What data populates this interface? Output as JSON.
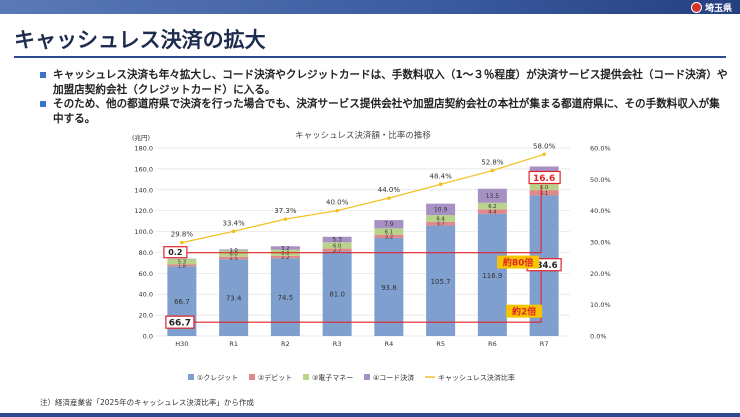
{
  "header": {
    "logo_text": "埼玉県"
  },
  "slide_title": "キャッシュレス決済の拡大",
  "bullets": [
    "キャッシュレス決済も年々拡大し、コード決済やクレジットカードは、手数料収入（1～３％程度）が決済サービス提供会社（コード決済）や加盟店契約会社（クレジットカード）に入る。",
    "そのため、他の都道府県で決済を行った場合でも、決済サービス提供会社や加盟店契約会社の本社が集まる都道府県に、その手数料収入が集中する。"
  ],
  "source_note": "注）経済産業省「2025年のキャッシュレス決済比率」から作成",
  "chart_data": {
    "type": "bar",
    "title": "キャッシュレス決済額・比率の推移",
    "y_unit_label": "(兆円)",
    "categories": [
      "H30",
      "R1",
      "R2",
      "R3",
      "R4",
      "R5",
      "R6",
      "R7"
    ],
    "ylim": [
      0,
      180
    ],
    "y_ticks": [
      "0.0",
      "20.0",
      "40.0",
      "60.0",
      "80.0",
      "100.0",
      "120.0",
      "140.0",
      "160.0",
      "180.0"
    ],
    "y2lim": [
      0,
      60
    ],
    "y2_ticks": [
      "0.0%",
      "10.0%",
      "20.0%",
      "30.0%",
      "40.0%",
      "50.0%",
      "60.0%"
    ],
    "series": [
      {
        "name": "①クレジット",
        "color": "#7f9fcf",
        "values": [
          66.7,
          73.4,
          74.5,
          81.0,
          93.8,
          105.7,
          116.9,
          134.6
        ]
      },
      {
        "name": "②デビット",
        "color": "#e0898c",
        "values": [
          1.8,
          2.5,
          2.2,
          2.7,
          3.2,
          3.7,
          4.4,
          5.1
        ]
      },
      {
        "name": "③電子マネー",
        "color": "#b9d38b",
        "values": [
          5.3,
          6.0,
          6.0,
          6.0,
          6.1,
          6.4,
          6.2,
          6.0
        ]
      },
      {
        "name": "④コード決済",
        "color": "#a791c4",
        "values": [
          0.2,
          1.0,
          3.2,
          5.3,
          7.9,
          10.9,
          13.5,
          16.6
        ]
      }
    ],
    "line_series": {
      "name": "キャッシュレス決済比率",
      "color": "#f2c01b",
      "values": [
        29.8,
        33.4,
        37.3,
        40.0,
        44.0,
        48.4,
        52.8,
        58.0
      ],
      "labels": [
        "29.8%",
        "33.4%",
        "37.3%",
        "40.0%",
        "44.0%",
        "48.4%",
        "52.8%",
        "58.0%"
      ]
    },
    "bar_labels": {
      "credit": [
        "66.7",
        "73.4",
        "74.5",
        "81.0",
        "93.8",
        "105.7",
        "116.9",
        "134.6"
      ],
      "debit": [
        "1.8",
        "2.5",
        "2.2",
        "2.7",
        "3.2",
        "3.7",
        "4.4",
        "5.1"
      ],
      "emoney": [
        "5.3",
        "6.0",
        "6.0",
        "6.0",
        "6.1",
        "6.4",
        "6.2",
        "6.0"
      ],
      "code": [
        "0.2",
        "1.0",
        "3.2",
        "5.3",
        "7.9",
        "10.9",
        "13.5",
        "16.6"
      ]
    },
    "annotations": {
      "code_growth": "約80倍",
      "credit_growth": "約2倍"
    },
    "grid": true,
    "legend_position": "bottom"
  }
}
